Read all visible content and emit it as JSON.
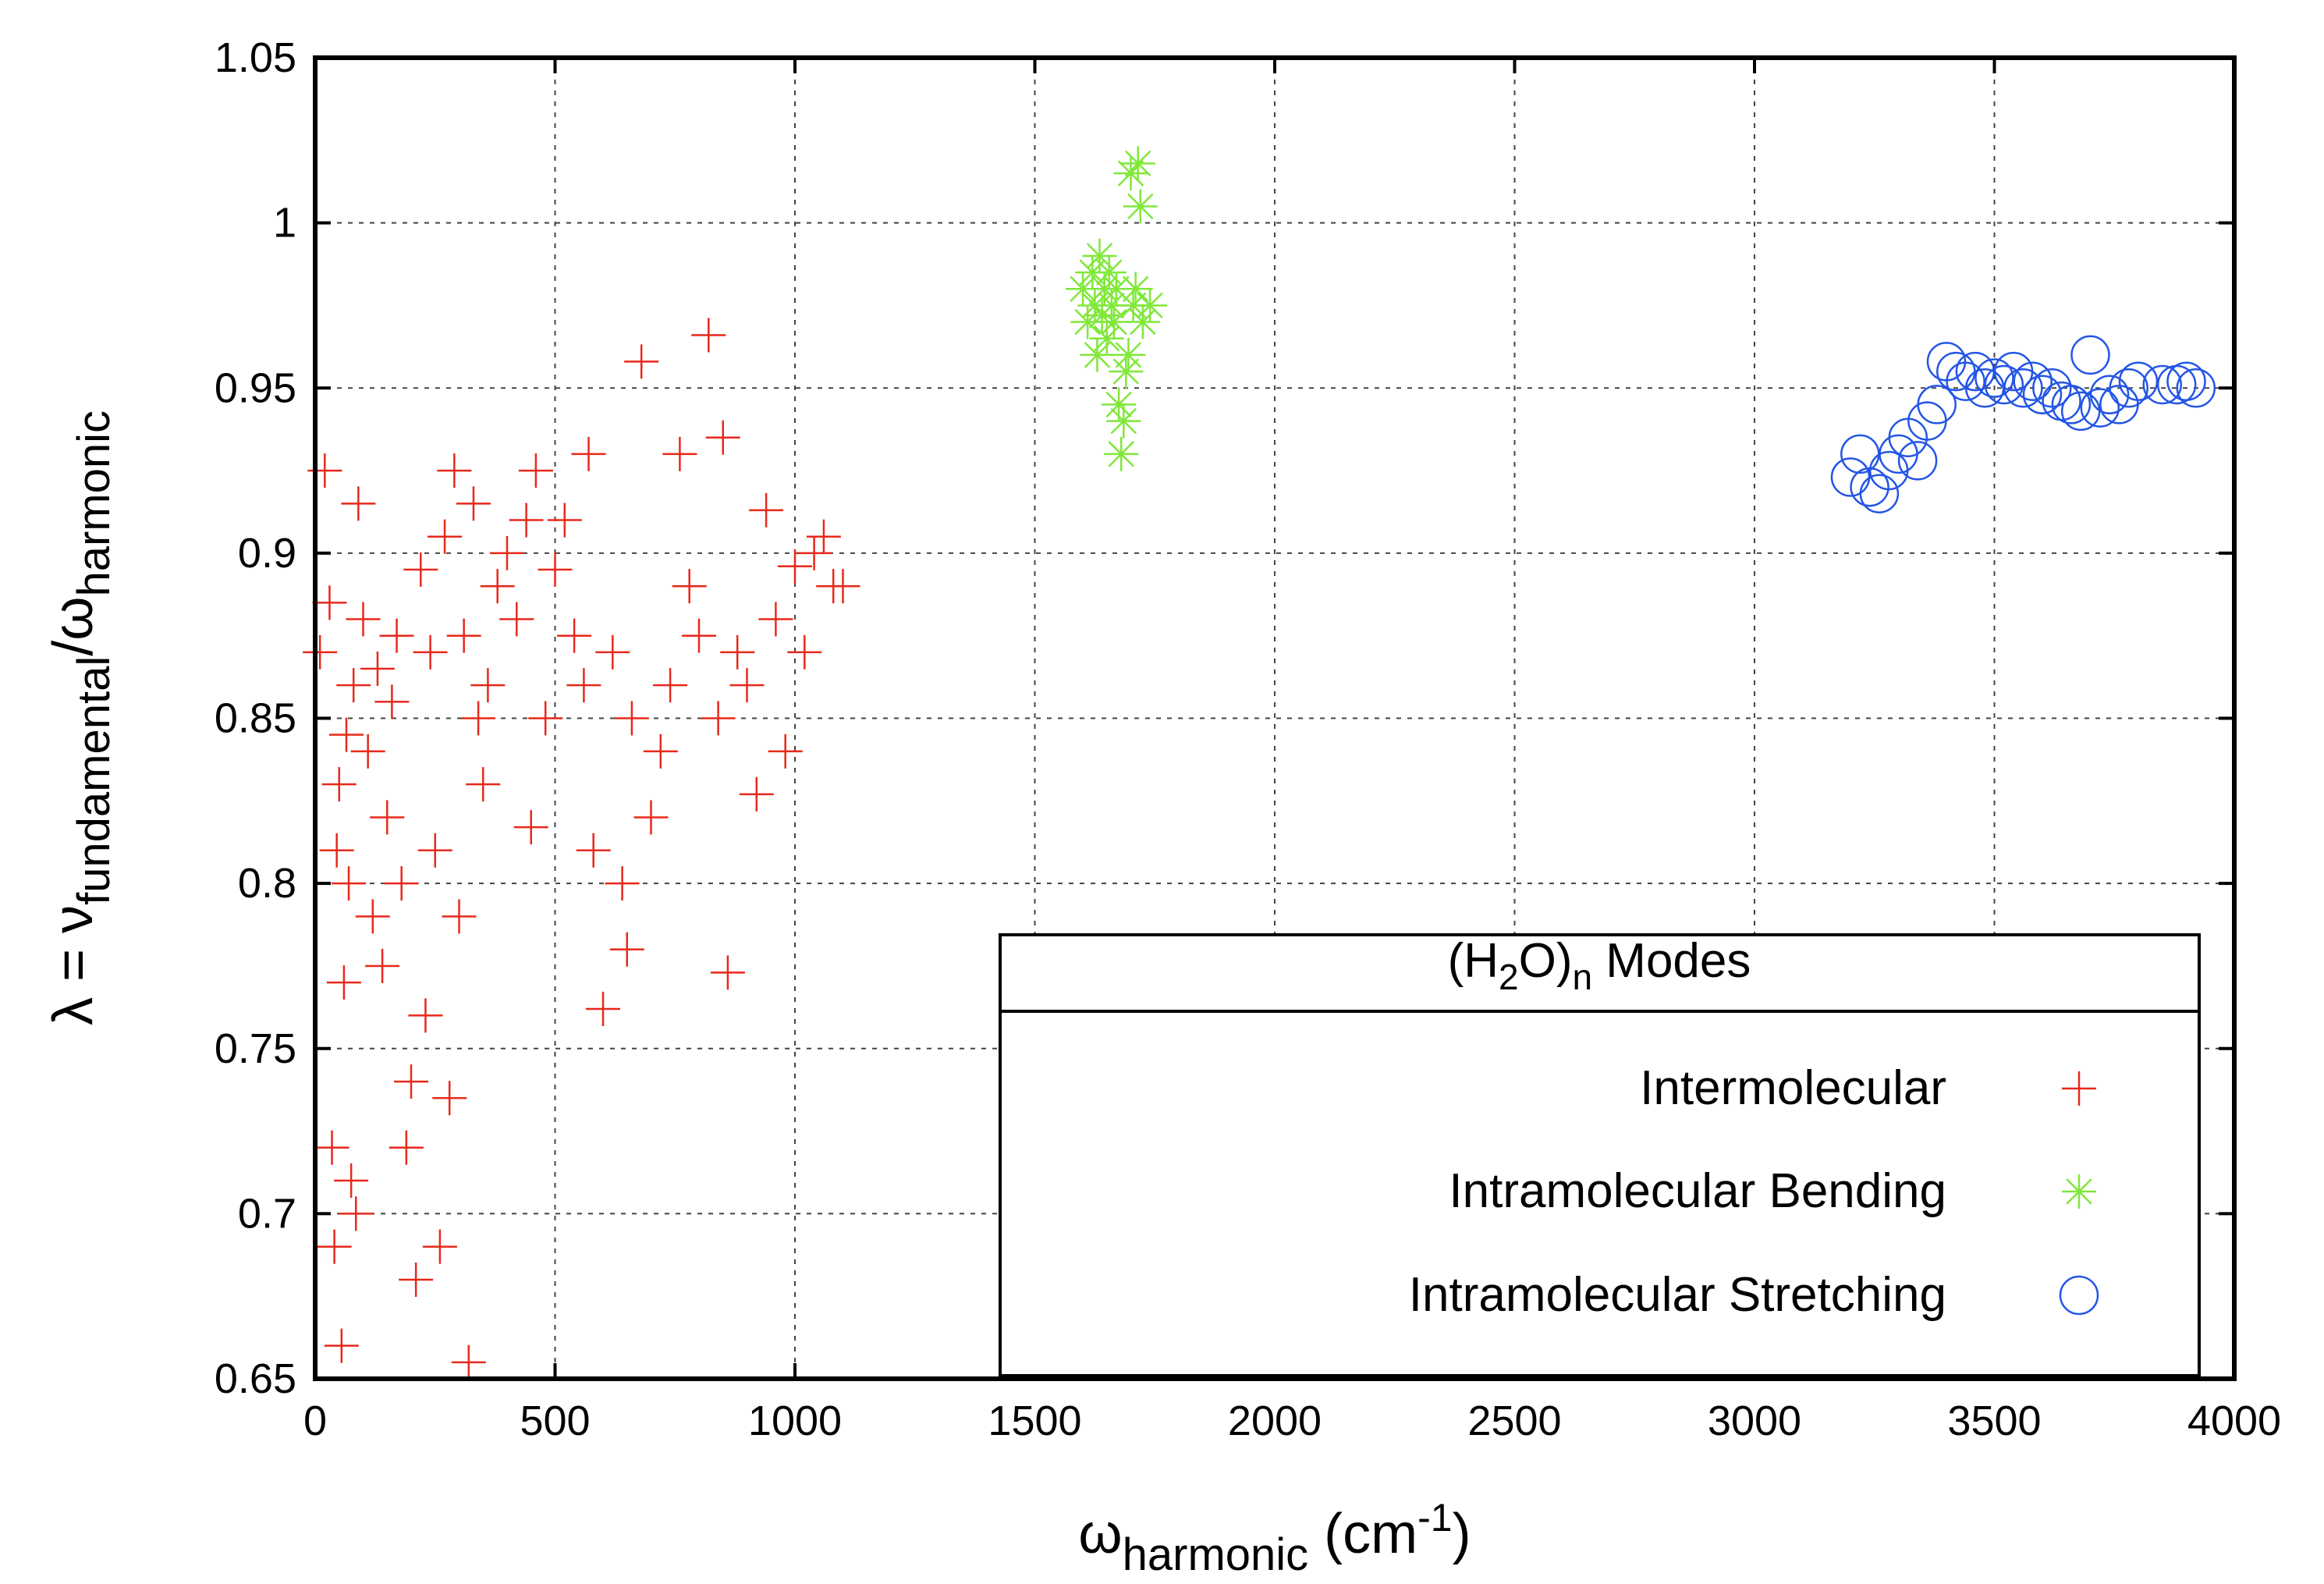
{
  "chart_data": {
    "type": "scatter",
    "xlim": [
      0,
      4000
    ],
    "ylim": [
      0.65,
      1.05
    ],
    "x_ticks": [
      "0",
      "500",
      "1000",
      "1500",
      "2000",
      "2500",
      "3000",
      "3500",
      "4000"
    ],
    "y_ticks": [
      "0.65",
      "0.7",
      "0.75",
      "0.8",
      "0.85",
      "0.9",
      "0.95",
      "1",
      "1.05"
    ],
    "grid": true,
    "xlabel": {
      "main": "ω",
      "sub": "harmonic",
      "unit_pre": " (cm",
      "sup": "-1",
      "unit_post": ")"
    },
    "ylabel": {
      "pre": "λ = ν",
      "sub1": "fundamental",
      "mid": "/ω",
      "sub2": "harmonic"
    },
    "legend": {
      "placement": "bottom-right",
      "title_pre": "(H",
      "title_sub1": "2",
      "title_mid": "O)",
      "title_sub2": "n",
      "title_post": " Modes",
      "entries": [
        "Intermolecular",
        "Intramolecular Bending",
        "Intramolecular Stretching"
      ]
    },
    "series": [
      {
        "name": "Intermolecular",
        "marker": "plus",
        "color": "#e8281a",
        "points": [
          [
            10,
            0.87
          ],
          [
            20,
            0.925
          ],
          [
            30,
            0.885
          ],
          [
            35,
            0.72
          ],
          [
            40,
            0.69
          ],
          [
            45,
            0.81
          ],
          [
            50,
            0.83
          ],
          [
            55,
            0.66
          ],
          [
            60,
            0.77
          ],
          [
            65,
            0.845
          ],
          [
            70,
            0.8
          ],
          [
            75,
            0.71
          ],
          [
            80,
            0.86
          ],
          [
            85,
            0.7
          ],
          [
            90,
            0.915
          ],
          [
            100,
            0.88
          ],
          [
            110,
            0.84
          ],
          [
            120,
            0.79
          ],
          [
            130,
            0.865
          ],
          [
            140,
            0.775
          ],
          [
            150,
            0.82
          ],
          [
            160,
            0.855
          ],
          [
            170,
            0.875
          ],
          [
            180,
            0.8
          ],
          [
            190,
            0.72
          ],
          [
            200,
            0.74
          ],
          [
            210,
            0.68
          ],
          [
            220,
            0.895
          ],
          [
            230,
            0.76
          ],
          [
            240,
            0.87
          ],
          [
            250,
            0.81
          ],
          [
            260,
            0.69
          ],
          [
            270,
            0.905
          ],
          [
            280,
            0.735
          ],
          [
            290,
            0.925
          ],
          [
            300,
            0.79
          ],
          [
            310,
            0.875
          ],
          [
            320,
            0.655
          ],
          [
            330,
            0.915
          ],
          [
            340,
            0.85
          ],
          [
            350,
            0.83
          ],
          [
            360,
            0.86
          ],
          [
            380,
            0.89
          ],
          [
            400,
            0.9
          ],
          [
            420,
            0.88
          ],
          [
            440,
            0.91
          ],
          [
            450,
            0.817
          ],
          [
            460,
            0.925
          ],
          [
            480,
            0.85
          ],
          [
            500,
            0.895
          ],
          [
            520,
            0.91
          ],
          [
            540,
            0.875
          ],
          [
            560,
            0.86
          ],
          [
            570,
            0.93
          ],
          [
            580,
            0.81
          ],
          [
            600,
            0.762
          ],
          [
            620,
            0.87
          ],
          [
            640,
            0.8
          ],
          [
            650,
            0.78
          ],
          [
            660,
            0.85
          ],
          [
            680,
            0.958
          ],
          [
            700,
            0.82
          ],
          [
            720,
            0.84
          ],
          [
            740,
            0.86
          ],
          [
            760,
            0.93
          ],
          [
            780,
            0.89
          ],
          [
            800,
            0.875
          ],
          [
            820,
            0.966
          ],
          [
            840,
            0.85
          ],
          [
            850,
            0.935
          ],
          [
            860,
            0.773
          ],
          [
            880,
            0.87
          ],
          [
            900,
            0.86
          ],
          [
            920,
            0.827
          ],
          [
            940,
            0.913
          ],
          [
            960,
            0.88
          ],
          [
            980,
            0.84
          ],
          [
            1000,
            0.896
          ],
          [
            1020,
            0.87
          ],
          [
            1040,
            0.9
          ],
          [
            1060,
            0.905
          ],
          [
            1080,
            0.89
          ],
          [
            1100,
            0.89
          ]
        ]
      },
      {
        "name": "Intramolecular Bending",
        "marker": "star",
        "color": "#7fe838",
        "points": [
          [
            1600,
            0.98
          ],
          [
            1610,
            0.97
          ],
          [
            1620,
            0.985
          ],
          [
            1625,
            0.975
          ],
          [
            1630,
            0.96
          ],
          [
            1635,
            0.99
          ],
          [
            1640,
            0.972
          ],
          [
            1645,
            0.98
          ],
          [
            1650,
            0.965
          ],
          [
            1655,
            0.985
          ],
          [
            1660,
            0.975
          ],
          [
            1665,
            0.97
          ],
          [
            1670,
            0.98
          ],
          [
            1675,
            0.945
          ],
          [
            1680,
            0.93
          ],
          [
            1685,
            0.94
          ],
          [
            1690,
            0.955
          ],
          [
            1695,
            0.96
          ],
          [
            1700,
            1.015
          ],
          [
            1705,
            0.975
          ],
          [
            1710,
            0.98
          ],
          [
            1715,
            1.018
          ],
          [
            1720,
            1.005
          ],
          [
            1725,
            0.97
          ],
          [
            1740,
            0.975
          ]
        ]
      },
      {
        "name": "Intramolecular Stretching",
        "marker": "circle",
        "color": "#2355e6",
        "points": [
          [
            3200,
            0.923
          ],
          [
            3220,
            0.93
          ],
          [
            3240,
            0.92
          ],
          [
            3260,
            0.918
          ],
          [
            3280,
            0.925
          ],
          [
            3300,
            0.93
          ],
          [
            3320,
            0.935
          ],
          [
            3340,
            0.928
          ],
          [
            3360,
            0.94
          ],
          [
            3380,
            0.945
          ],
          [
            3400,
            0.958
          ],
          [
            3420,
            0.955
          ],
          [
            3440,
            0.952
          ],
          [
            3460,
            0.955
          ],
          [
            3480,
            0.95
          ],
          [
            3500,
            0.953
          ],
          [
            3520,
            0.951
          ],
          [
            3540,
            0.955
          ],
          [
            3560,
            0.95
          ],
          [
            3580,
            0.952
          ],
          [
            3600,
            0.948
          ],
          [
            3620,
            0.95
          ],
          [
            3640,
            0.946
          ],
          [
            3660,
            0.945
          ],
          [
            3680,
            0.943
          ],
          [
            3700,
            0.96
          ],
          [
            3720,
            0.944
          ],
          [
            3740,
            0.948
          ],
          [
            3760,
            0.945
          ],
          [
            3780,
            0.95
          ],
          [
            3800,
            0.952
          ],
          [
            3850,
            0.951
          ],
          [
            3880,
            0.951
          ],
          [
            3900,
            0.952
          ],
          [
            3920,
            0.95
          ]
        ]
      }
    ]
  }
}
